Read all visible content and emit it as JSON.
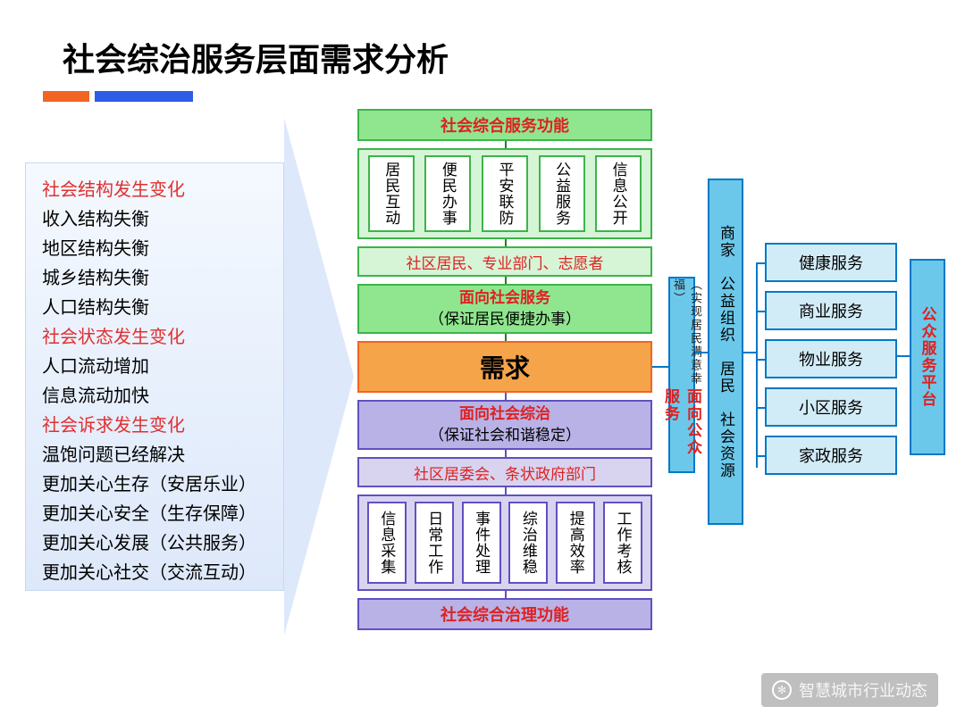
{
  "title": "社会综治服务层面需求分析",
  "colors": {
    "accent_orange": "#f26522",
    "accent_blue": "#2e5ce6",
    "green_border": "#3cb44a",
    "green_fill": "#8fe68f",
    "green_light": "#d6f5d6",
    "purple_border": "#6050c0",
    "purple_fill": "#b9b2e6",
    "purple_light": "#d8d4f0",
    "blue_border": "#0078c8",
    "blue_fill": "#6cc8ea",
    "blue_light": "#d2ecf7",
    "demand_fill": "#f5a44a",
    "red_text": "#d22"
  },
  "left_list": [
    {
      "text": "社会结构发生变化",
      "red": true
    },
    {
      "text": "收入结构失衡",
      "red": false
    },
    {
      "text": "地区结构失衡",
      "red": false
    },
    {
      "text": "城乡结构失衡",
      "red": false
    },
    {
      "text": "人口结构失衡",
      "red": false
    },
    {
      "text": "社会状态发生变化",
      "red": true
    },
    {
      "text": "人口流动增加",
      "red": false
    },
    {
      "text": "信息流动加快",
      "red": false
    },
    {
      "text": "社会诉求发生变化",
      "red": true
    },
    {
      "text": "温饱问题已经解决",
      "red": false
    },
    {
      "text": "更加关心生存（安居乐业）",
      "red": false
    },
    {
      "text": "更加关心安全（生存保障）",
      "red": false
    },
    {
      "text": "更加关心发展（公共服务）",
      "red": false
    },
    {
      "text": "更加关心社交（交流互动）",
      "red": false
    }
  ],
  "top_header": "社会综合服务功能",
  "green_functions": [
    "居民互动",
    "便民办事",
    "平安联防",
    "公益服务",
    "信息公开"
  ],
  "green_participants": "社区居民、专业部门、志愿者",
  "green_service": {
    "line1": "面向社会服务",
    "line2": "（保证居民便捷办事）"
  },
  "demand": "需求",
  "purple_gov": {
    "line1": "面向社会综治",
    "line2": "（保证社会和谐稳定）"
  },
  "purple_committee": "社区居委会、条状政府部门",
  "purple_functions": [
    "信息采集",
    "日常工作",
    "事件处理",
    "综治维稳",
    "提高效率",
    "工作考核"
  ],
  "bottom_header": "社会综合治理功能",
  "vbox1": {
    "title": "面向公众服务",
    "sub": "（实现居民满意幸福）"
  },
  "vbox2": "商家　公益组织　居民　社会资源",
  "vbox3": "公众服务平台",
  "right_services": [
    "健康服务",
    "商业服务",
    "物业服务",
    "小区服务",
    "家政服务"
  ],
  "watermark": "智慧城市行业动态"
}
